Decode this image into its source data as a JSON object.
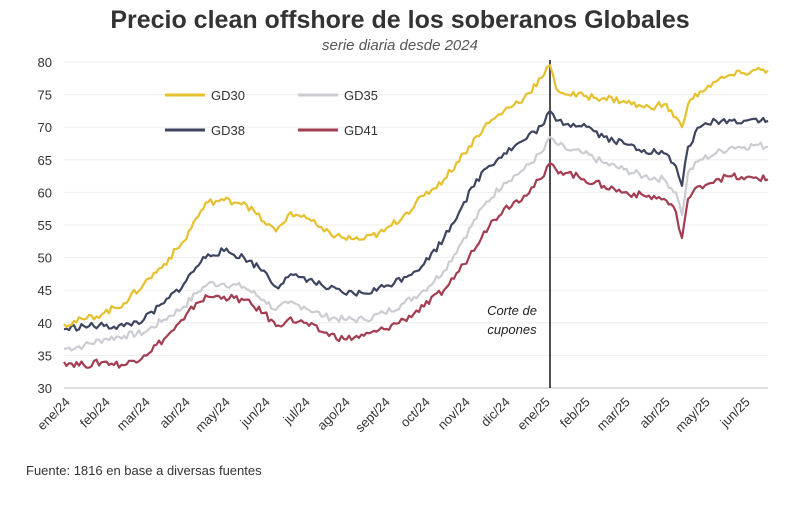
{
  "chart_data": {
    "type": "line",
    "title": "Precio clean offshore de los soberanos Globales",
    "subtitle": "serie diaria desde 2024",
    "source": "Fuente: 1816 en base a diversas fuentes",
    "xlabel": "",
    "ylabel": "",
    "ylim": [
      30,
      80
    ],
    "yticks": [
      30,
      35,
      40,
      45,
      50,
      55,
      60,
      65,
      70,
      75,
      80
    ],
    "grid": true,
    "legend_position": "top-left",
    "categories": [
      "ene/24",
      "feb/24",
      "mar/24",
      "abr/24",
      "may/24",
      "jun/24",
      "jul/24",
      "ago/24",
      "sept/24",
      "oct/24",
      "nov/24",
      "dic/24",
      "ene/25",
      "feb/25",
      "mar/25",
      "abr/25",
      "may/25",
      "jun/25"
    ],
    "annotation": {
      "text_line1": "Corte de",
      "text_line2": "cupones",
      "x": 12.15
    },
    "series": [
      {
        "name": "GD30",
        "color": "#e6c02e",
        "points": [
          [
            0,
            39.8
          ],
          [
            0.5,
            40.5
          ],
          [
            1,
            41.5
          ],
          [
            1.5,
            43
          ],
          [
            2,
            46
          ],
          [
            2.5,
            49
          ],
          [
            3,
            52.5
          ],
          [
            3.3,
            56
          ],
          [
            3.6,
            58.5
          ],
          [
            4,
            58.8
          ],
          [
            4.5,
            58.5
          ],
          [
            5,
            55.5
          ],
          [
            5.3,
            54
          ],
          [
            5.6,
            56.5
          ],
          [
            6,
            56.5
          ],
          [
            6.5,
            54
          ],
          [
            7,
            53
          ],
          [
            7.5,
            52.8
          ],
          [
            8,
            54
          ],
          [
            8.5,
            56.5
          ],
          [
            9,
            59.5
          ],
          [
            9.5,
            62
          ],
          [
            10,
            66
          ],
          [
            10.5,
            70
          ],
          [
            11,
            72.5
          ],
          [
            11.5,
            74.5
          ],
          [
            12,
            78
          ],
          [
            12.15,
            79.5
          ],
          [
            12.3,
            76
          ],
          [
            12.6,
            75
          ],
          [
            13,
            74.8
          ],
          [
            13.5,
            74.5
          ],
          [
            14,
            74
          ],
          [
            14.5,
            73
          ],
          [
            15,
            73.5
          ],
          [
            15.3,
            71.5
          ],
          [
            15.45,
            70
          ],
          [
            15.6,
            73.5
          ],
          [
            15.9,
            75.5
          ],
          [
            16.3,
            77
          ],
          [
            16.7,
            78
          ],
          [
            17,
            78.3
          ],
          [
            17.3,
            78.8
          ],
          [
            17.6,
            78.7
          ]
        ]
      },
      {
        "name": "GD35",
        "color": "#cbcdd2",
        "points": [
          [
            0,
            36
          ],
          [
            0.5,
            36.5
          ],
          [
            1,
            37.5
          ],
          [
            1.5,
            38
          ],
          [
            2,
            38.5
          ],
          [
            2.5,
            40.5
          ],
          [
            3,
            42.5
          ],
          [
            3.3,
            44.5
          ],
          [
            3.6,
            46
          ],
          [
            4,
            46
          ],
          [
            4.5,
            45.5
          ],
          [
            5,
            43.5
          ],
          [
            5.3,
            42
          ],
          [
            5.6,
            43
          ],
          [
            6,
            42.5
          ],
          [
            6.5,
            41
          ],
          [
            7,
            40.5
          ],
          [
            7.5,
            40.5
          ],
          [
            8,
            41.5
          ],
          [
            8.5,
            43
          ],
          [
            9,
            45
          ],
          [
            9.5,
            48
          ],
          [
            10,
            53
          ],
          [
            10.5,
            58
          ],
          [
            11,
            61.5
          ],
          [
            11.5,
            63.5
          ],
          [
            12,
            66.5
          ],
          [
            12.15,
            68.5
          ],
          [
            12.3,
            67.5
          ],
          [
            12.6,
            66.5
          ],
          [
            13,
            66
          ],
          [
            13.5,
            64.5
          ],
          [
            14,
            63.5
          ],
          [
            14.5,
            62.5
          ],
          [
            15,
            62
          ],
          [
            15.3,
            60
          ],
          [
            15.45,
            56.5
          ],
          [
            15.6,
            63
          ],
          [
            15.9,
            65
          ],
          [
            16.3,
            66
          ],
          [
            16.7,
            67
          ],
          [
            17,
            67
          ],
          [
            17.3,
            67.3
          ],
          [
            17.6,
            67
          ]
        ]
      },
      {
        "name": "GD38",
        "color": "#3e4560",
        "points": [
          [
            0,
            39
          ],
          [
            0.5,
            39.5
          ],
          [
            1,
            39.5
          ],
          [
            1.5,
            39.5
          ],
          [
            2,
            40.5
          ],
          [
            2.5,
            43
          ],
          [
            3,
            46
          ],
          [
            3.3,
            48.5
          ],
          [
            3.6,
            50.5
          ],
          [
            4,
            51
          ],
          [
            4.5,
            50
          ],
          [
            5,
            48
          ],
          [
            5.3,
            45.5
          ],
          [
            5.6,
            47
          ],
          [
            6,
            47
          ],
          [
            6.5,
            45.5
          ],
          [
            7,
            44.5
          ],
          [
            7.5,
            44.5
          ],
          [
            8,
            45.5
          ],
          [
            8.5,
            47
          ],
          [
            9,
            49
          ],
          [
            9.5,
            53
          ],
          [
            10,
            58.5
          ],
          [
            10.5,
            63.5
          ],
          [
            11,
            66
          ],
          [
            11.5,
            68
          ],
          [
            12,
            70.5
          ],
          [
            12.15,
            72.5
          ],
          [
            12.3,
            71
          ],
          [
            12.6,
            70.5
          ],
          [
            13,
            70.5
          ],
          [
            13.5,
            68.5
          ],
          [
            14,
            67.5
          ],
          [
            14.5,
            66.5
          ],
          [
            15,
            66
          ],
          [
            15.3,
            64
          ],
          [
            15.45,
            61
          ],
          [
            15.6,
            67
          ],
          [
            15.9,
            70
          ],
          [
            16.3,
            71
          ],
          [
            16.7,
            71
          ],
          [
            17,
            71
          ],
          [
            17.3,
            71.3
          ],
          [
            17.6,
            71
          ]
        ]
      },
      {
        "name": "GD41",
        "color": "#a33d52",
        "points": [
          [
            0,
            34
          ],
          [
            0.5,
            33.5
          ],
          [
            1,
            34
          ],
          [
            1.5,
            33.5
          ],
          [
            2,
            35
          ],
          [
            2.5,
            37.5
          ],
          [
            3,
            40.5
          ],
          [
            3.3,
            43
          ],
          [
            3.6,
            44
          ],
          [
            4,
            44
          ],
          [
            4.5,
            43.5
          ],
          [
            5,
            41.5
          ],
          [
            5.3,
            39.5
          ],
          [
            5.6,
            40.5
          ],
          [
            6,
            40
          ],
          [
            6.5,
            38.5
          ],
          [
            7,
            37.5
          ],
          [
            7.5,
            38
          ],
          [
            8,
            39
          ],
          [
            8.5,
            40.5
          ],
          [
            9,
            42.5
          ],
          [
            9.5,
            45
          ],
          [
            10,
            49
          ],
          [
            10.5,
            54
          ],
          [
            11,
            57.5
          ],
          [
            11.5,
            59.5
          ],
          [
            12,
            62.5
          ],
          [
            12.15,
            64.5
          ],
          [
            12.3,
            63.5
          ],
          [
            12.6,
            63
          ],
          [
            13,
            62
          ],
          [
            13.5,
            61
          ],
          [
            14,
            60
          ],
          [
            14.5,
            59.5
          ],
          [
            15,
            59
          ],
          [
            15.3,
            57
          ],
          [
            15.45,
            53
          ],
          [
            15.6,
            59
          ],
          [
            15.9,
            61
          ],
          [
            16.3,
            62
          ],
          [
            16.7,
            62.5
          ],
          [
            17,
            62
          ],
          [
            17.3,
            62.3
          ],
          [
            17.6,
            62
          ]
        ]
      }
    ]
  }
}
